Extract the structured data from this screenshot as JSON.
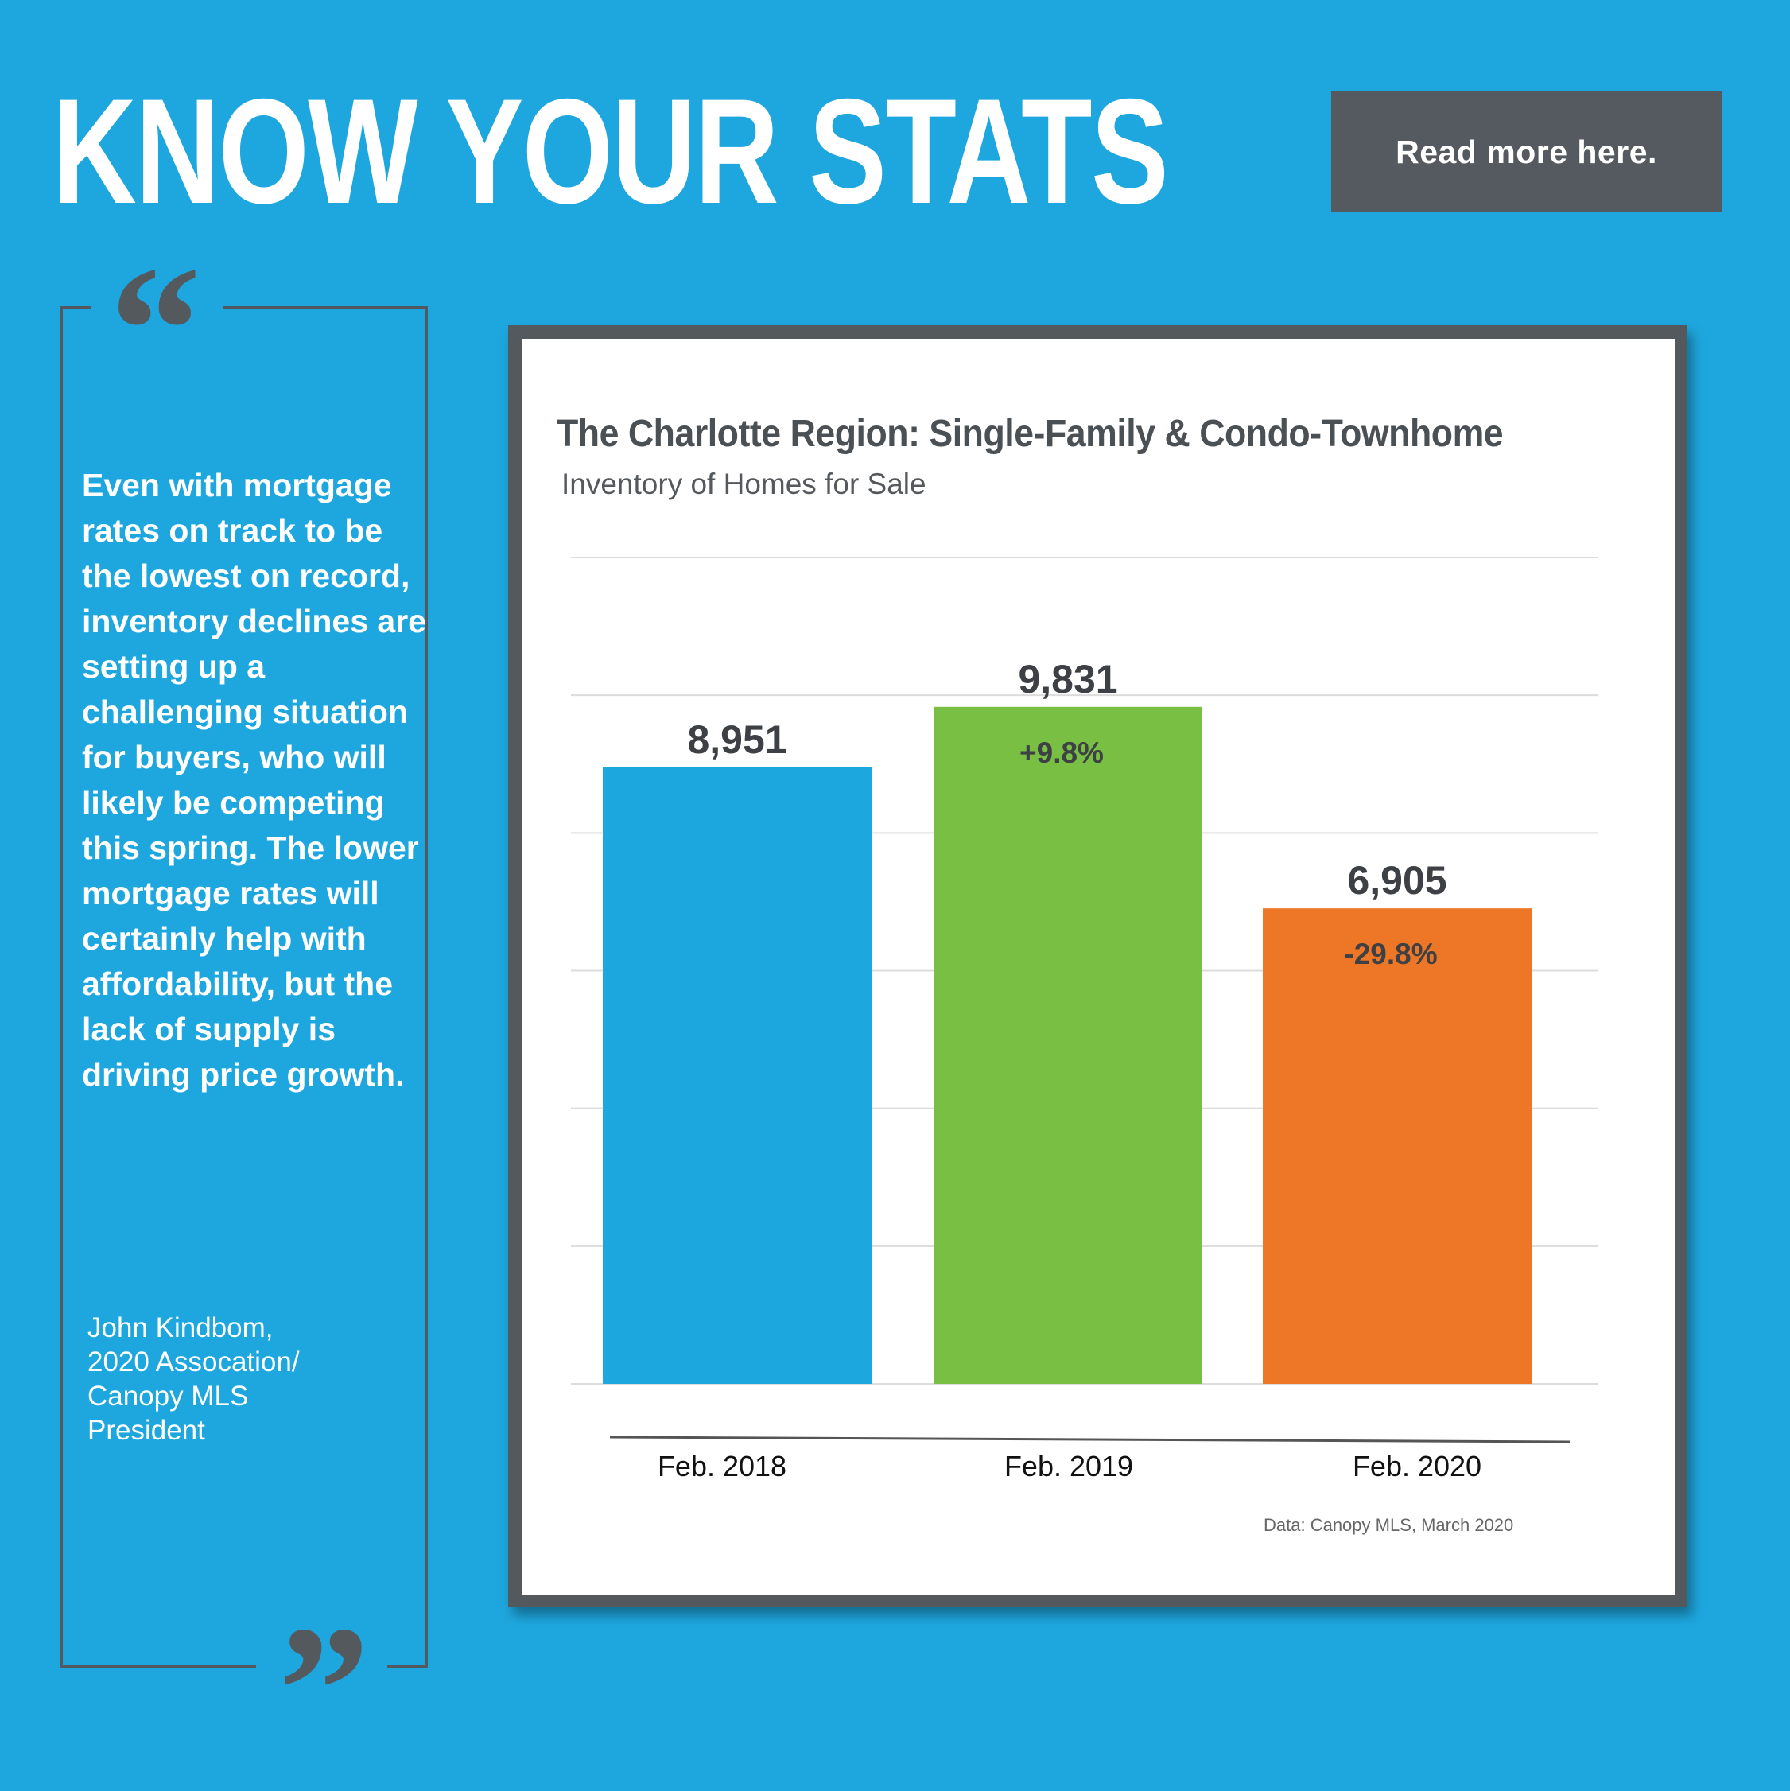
{
  "header": {
    "headline": "KNOW YOUR STATS",
    "read_more_label": "Read more here."
  },
  "quote": {
    "open_mark": "“",
    "close_mark": "”",
    "text": "Even with mortgage rates on track to be the lowest on record, inventory declines are setting up a challenging situation for buyers, who will likely be competing this spring. The lower mortgage rates will certainly help with affordability, but the lack of supply is driving price growth.",
    "attribution_lines": [
      "John Kindbom,",
      "2020 Assocation/",
      "Canopy MLS",
      "President"
    ]
  },
  "colors": {
    "background": "#1ea7de",
    "frame": "#54595e",
    "bar_2018": "#1ca7de",
    "bar_2019": "#79bf44",
    "bar_2020": "#ed7726"
  },
  "chart_data": {
    "type": "bar",
    "title": "The Charlotte Region: Single-Family & Condo-Townhome",
    "subtitle": "Inventory of Homes for Sale",
    "xlabel": "",
    "ylabel": "",
    "categories": [
      "Feb. 2018",
      "Feb. 2019",
      "Feb. 2020"
    ],
    "values": [
      8951,
      9831,
      6905
    ],
    "value_labels": [
      "8,951",
      "9,831",
      "6,905"
    ],
    "change_labels": [
      "",
      "+9.8%",
      "-29.8%"
    ],
    "bar_colors": [
      "#1ca7de",
      "#79bf44",
      "#ed7726"
    ],
    "ylim": [
      0,
      12000
    ],
    "grid_step": 2000,
    "grid": true,
    "y_tick_labels_shown": false,
    "legend": "none",
    "source": "Data: Canopy MLS, March 2020"
  }
}
